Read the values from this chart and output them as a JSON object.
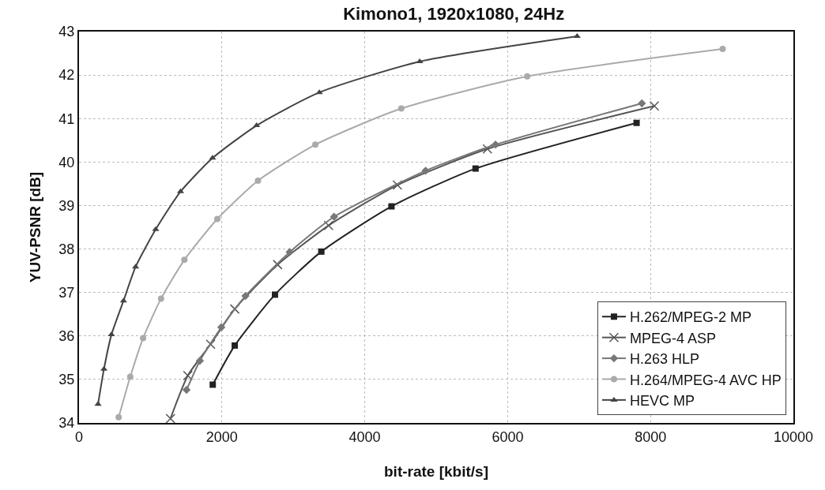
{
  "chart_data": {
    "type": "line",
    "title": "Kimono1, 1920x1080, 24Hz",
    "xlabel": "bit-rate [kbit/s]",
    "ylabel": "YUV-PSNR [dB]",
    "xlim": [
      0,
      10000
    ],
    "xticks": [
      0,
      2000,
      4000,
      6000,
      8000,
      10000
    ],
    "ylim": [
      34,
      43
    ],
    "yticks": [
      34,
      35,
      36,
      37,
      38,
      39,
      40,
      41,
      42,
      43
    ],
    "grid": true,
    "legend": "bottom right",
    "series": [
      {
        "name": "H.262/MPEG-2 MP",
        "color": "#222222",
        "marker": "square",
        "x": [
          1872,
          2180,
          2743,
          3392,
          4374,
          5551,
          7805
        ],
        "values": [
          34.88,
          35.78,
          36.95,
          37.94,
          38.98,
          39.85,
          40.9
        ]
      },
      {
        "name": "MPEG-4 ASP",
        "color": "#555555",
        "marker": "cross",
        "x": [
          1280,
          1523,
          1842,
          2180,
          2780,
          3493,
          4457,
          5717,
          8054
        ],
        "values": [
          34.1,
          35.09,
          35.81,
          36.62,
          37.64,
          38.54,
          39.47,
          40.3,
          41.29
        ]
      },
      {
        "name": "H.263 HLP",
        "color": "#777777",
        "marker": "diamond",
        "x": [
          1505,
          1692,
          1992,
          2330,
          2949,
          3570,
          4852,
          5830,
          7879
        ],
        "values": [
          34.76,
          35.43,
          36.2,
          36.92,
          37.93,
          38.74,
          39.8,
          40.4,
          41.35
        ]
      },
      {
        "name": "H.264/MPEG-4 AVC HP",
        "color": "#aaaaaa",
        "marker": "circle",
        "x": [
          555,
          717,
          897,
          1148,
          1475,
          1936,
          2505,
          3308,
          4511,
          6274,
          9010
        ],
        "values": [
          34.13,
          35.06,
          35.95,
          36.86,
          37.75,
          38.69,
          39.57,
          40.4,
          41.23,
          41.97,
          42.6
        ]
      },
      {
        "name": "HEVC MP",
        "color": "#444444",
        "marker": "triangle",
        "x": [
          266,
          349,
          454,
          623,
          792,
          1073,
          1421,
          1869,
          2486,
          3364,
          4769,
          6973
        ],
        "values": [
          34.43,
          35.24,
          36.03,
          36.81,
          37.59,
          38.45,
          39.32,
          40.09,
          40.84,
          41.6,
          42.31,
          42.89
        ]
      }
    ]
  }
}
